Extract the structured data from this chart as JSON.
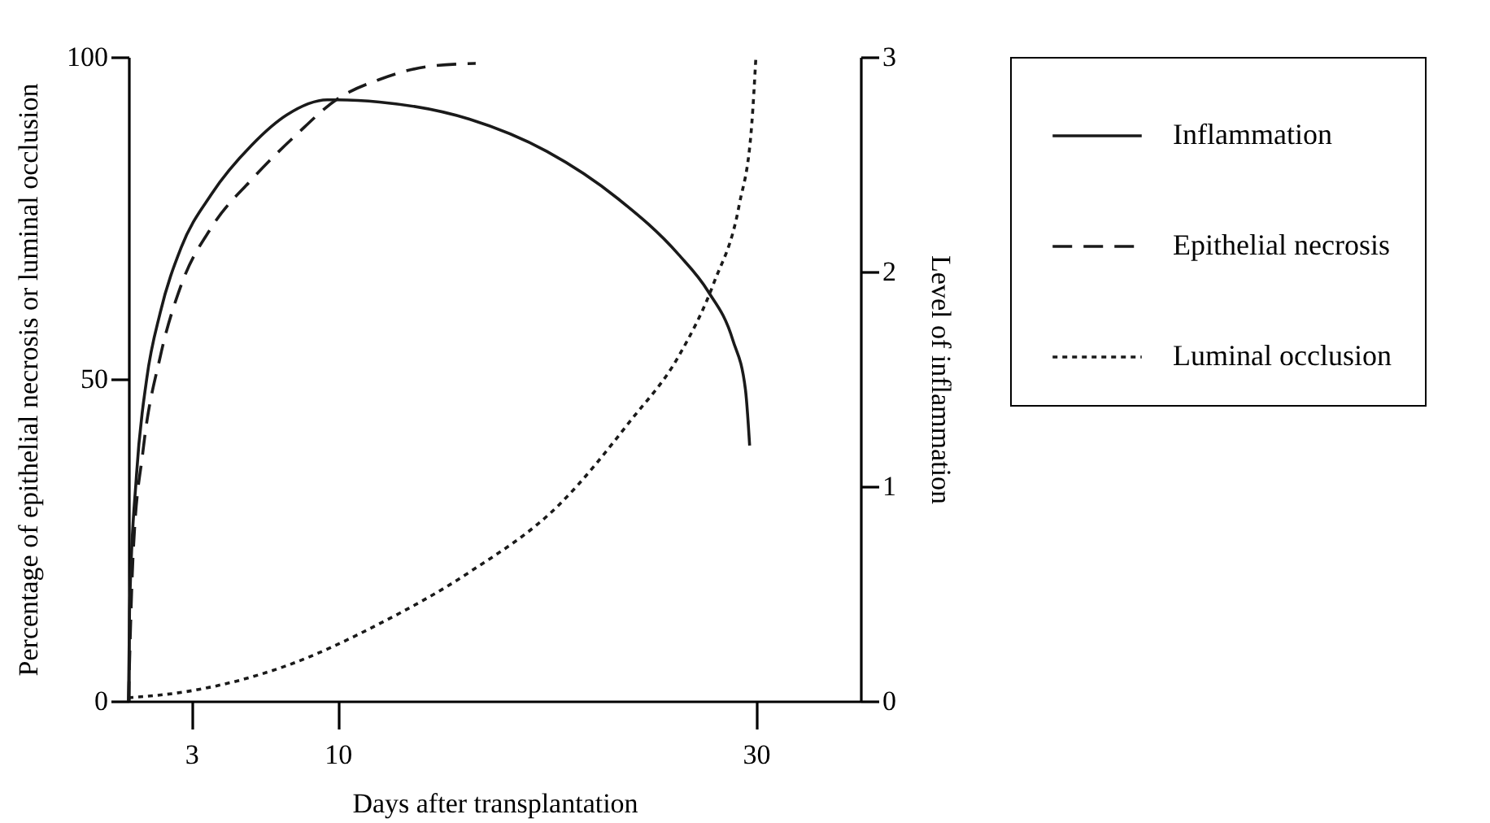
{
  "chart_data": {
    "type": "line",
    "xlabel": "Days after transplantation",
    "ylabel": "Percentage of epithelial necrosis or luminal occlusion",
    "y2label": "Level of inflammation",
    "xlim": [
      0,
      35
    ],
    "xticks": [
      3,
      10,
      30
    ],
    "ylim": [
      0,
      100
    ],
    "yticks": [
      0,
      50,
      100
    ],
    "y2lim": [
      0,
      3
    ],
    "y2ticks": [
      0,
      1,
      2,
      3
    ],
    "legend": "top right",
    "series": [
      {
        "name": "Inflammation",
        "color": "#1a1a1a",
        "line_style": "solid",
        "axis": "y2",
        "x": [
          0,
          0.05,
          0.38,
          0.87,
          1.52,
          2.51,
          3.96,
          5.9,
          7.57,
          9.5,
          10,
          12,
          16.3,
          20,
          23.4,
          26.3,
          27.7,
          28.9,
          29.5,
          29.7
        ],
        "values": [
          0,
          0.42,
          1.05,
          1.5,
          1.81,
          2.11,
          2.36,
          2.59,
          2.73,
          2.8,
          2.8,
          2.79,
          2.71,
          2.56,
          2.34,
          2.08,
          1.91,
          1.68,
          1.45,
          1.19
        ]
      },
      {
        "name": "Epithelial necrosis",
        "color": "#1a1a1a",
        "line_style": "dashed",
        "x": [
          0,
          0.21,
          0.7,
          1.52,
          2.51,
          3.96,
          5.9,
          8.05,
          10,
          12,
          14.3,
          16.6
        ],
        "values": [
          0,
          22,
          39,
          53.5,
          64.5,
          73.5,
          81,
          88,
          93.5,
          96.5,
          98.5,
          99
        ]
      },
      {
        "name": "Luminal occlusion",
        "color": "#1a1a1a",
        "line_style": "dotted",
        "x": [
          0,
          2.84,
          7.57,
          12,
          16.3,
          20.6,
          24,
          26.3,
          28,
          29.2,
          29.8,
          30
        ],
        "values": [
          0.5,
          1.5,
          5.5,
          12,
          20,
          30.5,
          43.5,
          53.5,
          65,
          77,
          89.5,
          100
        ]
      }
    ]
  }
}
